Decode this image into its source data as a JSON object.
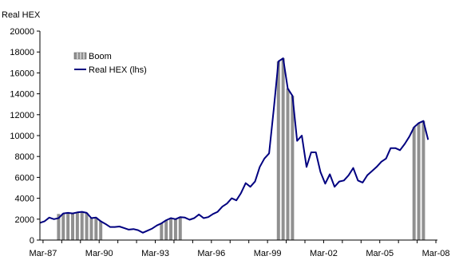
{
  "chart_data": {
    "type": "line",
    "ylabel": "Real HEX",
    "ylim": [
      0,
      20000
    ],
    "yticks": [
      0,
      2000,
      4000,
      6000,
      8000,
      10000,
      12000,
      14000,
      16000,
      18000,
      20000
    ],
    "xlim": [
      "1987-01",
      "2008-04"
    ],
    "xticks": [
      {
        "label": "Mar-87",
        "date": "1987-03"
      },
      {
        "label": "Mar-90",
        "date": "1990-03"
      },
      {
        "label": "Mar-93",
        "date": "1993-03"
      },
      {
        "label": "Mar-96",
        "date": "1996-03"
      },
      {
        "label": "Mar-99",
        "date": "1999-03"
      },
      {
        "label": "Mar-02",
        "date": "2002-03"
      },
      {
        "label": "Mar-05",
        "date": "2005-03"
      },
      {
        "label": "Mar-08",
        "date": "2008-03"
      }
    ],
    "legend": {
      "placement": "top-left",
      "entries": [
        "Boom",
        "Real HEX (lhs)"
      ]
    },
    "grid": false,
    "series": [
      {
        "name": "Real HEX (lhs)",
        "kind": "line",
        "color": "#000080",
        "points": [
          [
            "1987-01",
            1650
          ],
          [
            "1987-04",
            1800
          ],
          [
            "1987-07",
            2150
          ],
          [
            "1987-10",
            2000
          ],
          [
            "1988-01",
            2100
          ],
          [
            "1988-04",
            2550
          ],
          [
            "1988-07",
            2600
          ],
          [
            "1988-10",
            2550
          ],
          [
            "1989-01",
            2650
          ],
          [
            "1989-04",
            2700
          ],
          [
            "1989-07",
            2600
          ],
          [
            "1989-10",
            2100
          ],
          [
            "1990-01",
            2150
          ],
          [
            "1990-04",
            1800
          ],
          [
            "1990-07",
            1550
          ],
          [
            "1990-10",
            1250
          ],
          [
            "1991-01",
            1250
          ],
          [
            "1991-04",
            1300
          ],
          [
            "1991-07",
            1150
          ],
          [
            "1991-10",
            1000
          ],
          [
            "1992-01",
            1050
          ],
          [
            "1992-04",
            950
          ],
          [
            "1992-07",
            700
          ],
          [
            "1992-10",
            900
          ],
          [
            "1993-01",
            1100
          ],
          [
            "1993-04",
            1400
          ],
          [
            "1993-07",
            1600
          ],
          [
            "1993-10",
            1900
          ],
          [
            "1994-01",
            2100
          ],
          [
            "1994-04",
            2000
          ],
          [
            "1994-07",
            2200
          ],
          [
            "1994-10",
            2150
          ],
          [
            "1995-01",
            1950
          ],
          [
            "1995-04",
            2100
          ],
          [
            "1995-07",
            2450
          ],
          [
            "1995-10",
            2100
          ],
          [
            "1996-01",
            2200
          ],
          [
            "1996-04",
            2500
          ],
          [
            "1996-07",
            2700
          ],
          [
            "1996-10",
            3200
          ],
          [
            "1997-01",
            3500
          ],
          [
            "1997-04",
            4000
          ],
          [
            "1997-07",
            3800
          ],
          [
            "1997-10",
            4500
          ],
          [
            "1998-01",
            5450
          ],
          [
            "1998-04",
            5100
          ],
          [
            "1998-07",
            5600
          ],
          [
            "1998-10",
            7000
          ],
          [
            "1999-01",
            7800
          ],
          [
            "1999-04",
            8300
          ],
          [
            "1999-07",
            12500
          ],
          [
            "1999-10",
            17100
          ],
          [
            "2000-01",
            17400
          ],
          [
            "2000-04",
            14500
          ],
          [
            "2000-07",
            13800
          ],
          [
            "2000-10",
            9500
          ],
          [
            "2001-01",
            10000
          ],
          [
            "2001-04",
            7000
          ],
          [
            "2001-07",
            8400
          ],
          [
            "2001-10",
            8400
          ],
          [
            "2002-01",
            6500
          ],
          [
            "2002-04",
            5400
          ],
          [
            "2002-07",
            6300
          ],
          [
            "2002-10",
            5100
          ],
          [
            "2003-01",
            5600
          ],
          [
            "2003-04",
            5700
          ],
          [
            "2003-07",
            6200
          ],
          [
            "2003-10",
            6900
          ],
          [
            "2004-01",
            5700
          ],
          [
            "2004-04",
            5500
          ],
          [
            "2004-07",
            6200
          ],
          [
            "2004-10",
            6600
          ],
          [
            "2005-01",
            7000
          ],
          [
            "2005-04",
            7500
          ],
          [
            "2005-07",
            7800
          ],
          [
            "2005-10",
            8800
          ],
          [
            "2006-01",
            8800
          ],
          [
            "2006-04",
            8600
          ],
          [
            "2006-07",
            9200
          ],
          [
            "2006-10",
            9900
          ],
          [
            "2007-01",
            10800
          ],
          [
            "2007-04",
            11200
          ],
          [
            "2007-07",
            11400
          ],
          [
            "2007-10",
            9600
          ]
        ]
      },
      {
        "name": "Boom",
        "kind": "bar",
        "color": "#909090",
        "points": [
          [
            "1988-01",
            2500
          ],
          [
            "1988-04",
            2550
          ],
          [
            "1988-07",
            2600
          ],
          [
            "1988-10",
            2550
          ],
          [
            "1989-01",
            2650
          ],
          [
            "1989-04",
            2700
          ],
          [
            "1989-07",
            2600
          ],
          [
            "1989-10",
            2100
          ],
          [
            "1990-01",
            2150
          ],
          [
            "1990-04",
            1800
          ],
          [
            "1993-07",
            1600
          ],
          [
            "1993-10",
            1900
          ],
          [
            "1994-01",
            2100
          ],
          [
            "1994-04",
            2000
          ],
          [
            "1994-07",
            2200
          ],
          [
            "1999-10",
            17100
          ],
          [
            "2000-01",
            17400
          ],
          [
            "2000-04",
            14500
          ],
          [
            "2000-07",
            13800
          ],
          [
            "2007-01",
            10800
          ],
          [
            "2007-04",
            11200
          ],
          [
            "2007-07",
            11400
          ]
        ]
      }
    ]
  }
}
